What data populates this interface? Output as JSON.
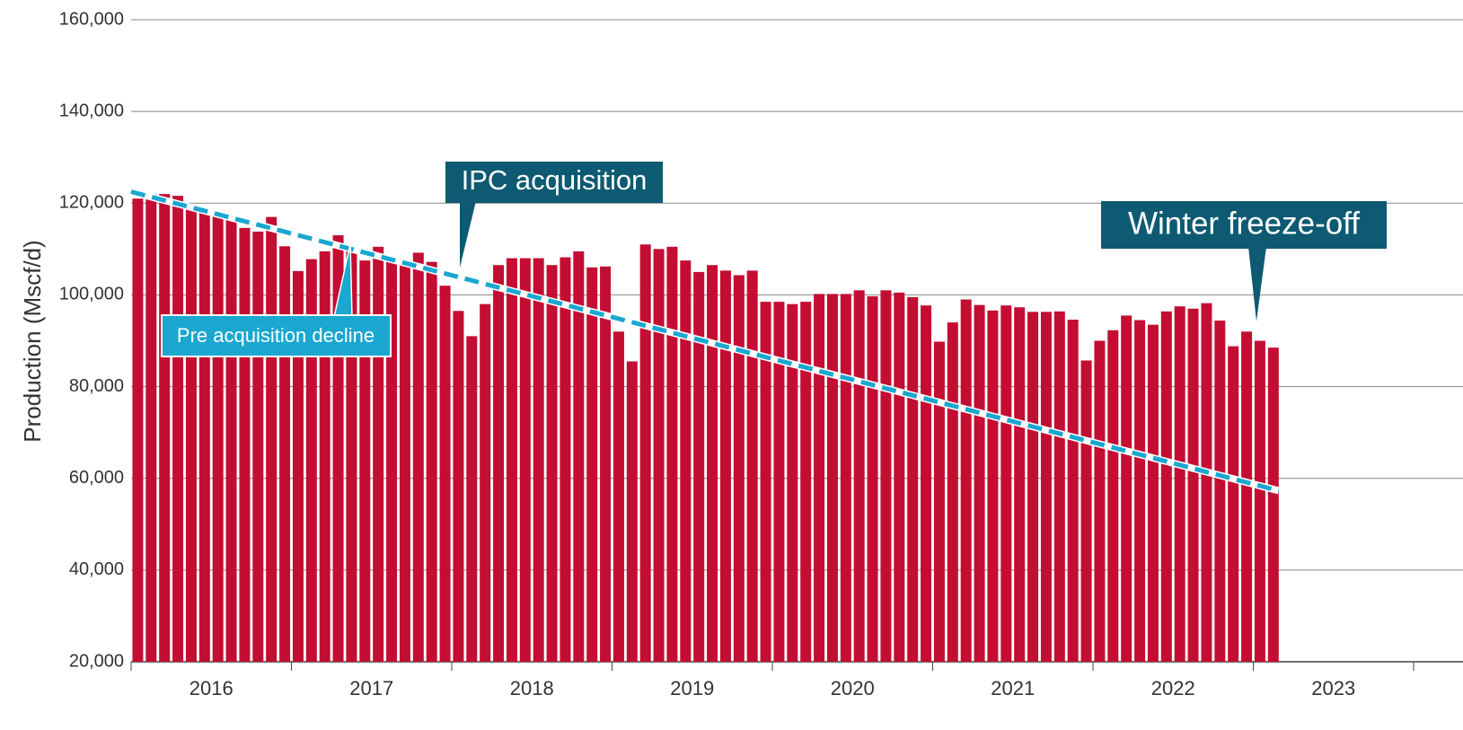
{
  "chart_data": {
    "type": "bar",
    "y_label": "Production (Mscf/d)",
    "xticks": [
      "2016",
      "2017",
      "2018",
      "2019",
      "2020",
      "2021",
      "2022",
      "2023"
    ],
    "color": "#c40d32",
    "values": [
      121000,
      122000,
      122000,
      121600,
      119500,
      118000,
      117300,
      117100,
      114600,
      113800,
      117000,
      110600,
      105200,
      107800,
      109500,
      113000,
      110000,
      107500,
      110500,
      107500,
      107500,
      109200,
      107200,
      102000,
      96500,
      91000,
      98000,
      106500,
      108000,
      108000,
      108000,
      106500,
      108200,
      109500,
      106000,
      106200,
      92000,
      85500,
      111000,
      110000,
      110500,
      107500,
      105000,
      106500,
      105300,
      104300,
      105300,
      98500,
      98500,
      98000,
      98500,
      100200,
      100200,
      100200,
      101000,
      99700,
      101000,
      100500,
      99500,
      97700,
      89800,
      94000,
      99000,
      97800,
      96600,
      97700,
      97300,
      96300,
      96300,
      96400,
      94600,
      85700,
      90000,
      92300,
      95500,
      94500,
      93500,
      96400,
      97500,
      97000,
      98200,
      94400,
      88800,
      92000,
      90000,
      88500
    ],
    "ylim": [
      20000,
      160000
    ],
    "yticks": [
      {
        "value": 20000,
        "label": "20,000"
      },
      {
        "value": 40000,
        "label": "40,000"
      },
      {
        "value": 60000,
        "label": "60,000"
      },
      {
        "value": 80000,
        "label": "80,000"
      },
      {
        "value": 100000,
        "label": "100,000"
      },
      {
        "value": 120000,
        "label": "120,000"
      },
      {
        "value": 140000,
        "label": "140,000"
      },
      {
        "value": 160000,
        "label": "160,000"
      }
    ],
    "grid": true,
    "trend": {
      "name": "Pre acquisition decline",
      "color": "#1aa7d0",
      "values": [
        122500,
        57300
      ]
    },
    "annotations": [
      "IPC acquisition",
      "Winter freeze-off"
    ]
  }
}
